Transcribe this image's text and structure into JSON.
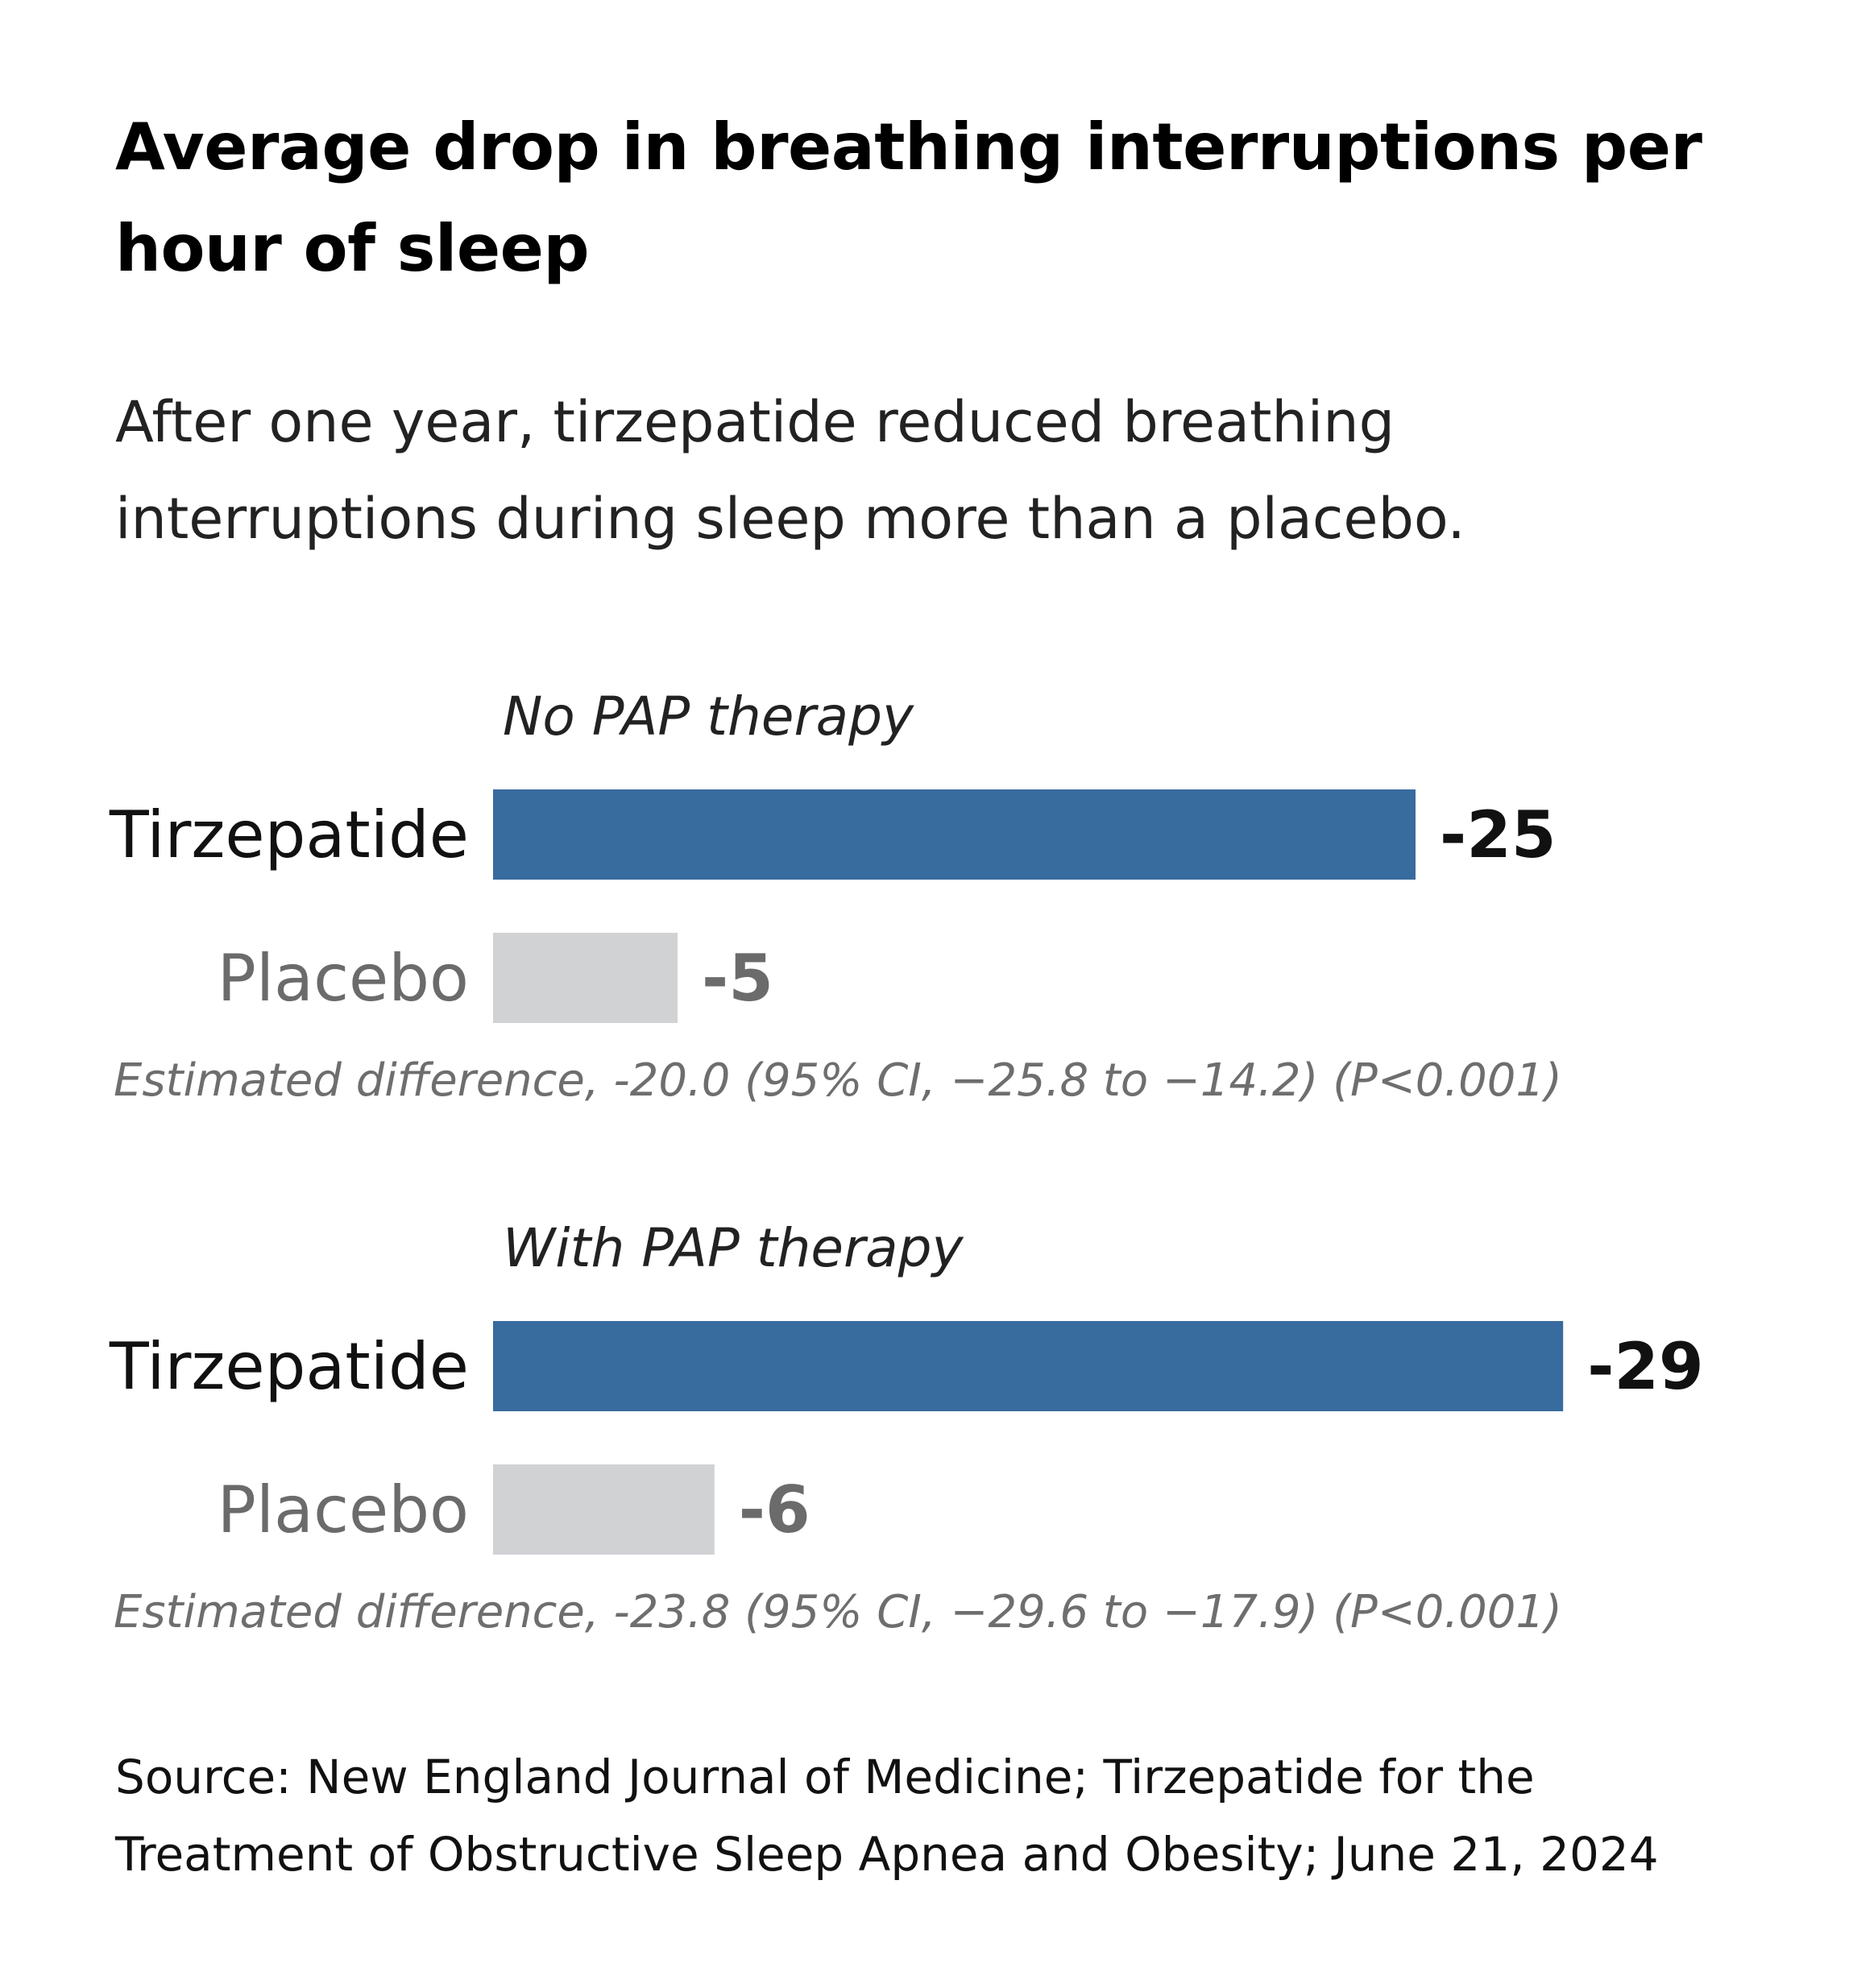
{
  "header": {
    "title": "Average drop in breathing interruptions per hour of sleep",
    "subtitle": "After one year, tirzepatide reduced breathing interruptions during sleep more than a placebo."
  },
  "chart_data": [
    {
      "type": "bar",
      "orientation": "horizontal",
      "title": "No PAP therapy",
      "categories": [
        "Tirzepatide",
        "Placebo"
      ],
      "values": [
        -25,
        -5
      ],
      "value_labels": [
        "-25",
        "-5"
      ],
      "colors": [
        "#386b9e",
        "#d1d2d4"
      ],
      "label_colors": [
        "#111111",
        "#6b6b6b"
      ],
      "note": "Estimated difference, -20.0 (95% CI, −25.8 to −14.2) (P<0.001)"
    },
    {
      "type": "bar",
      "orientation": "horizontal",
      "title": "With PAP therapy",
      "categories": [
        "Tirzepatide",
        "Placebo"
      ],
      "values": [
        -29,
        -6
      ],
      "value_labels": [
        "-29",
        "-6"
      ],
      "colors": [
        "#386b9e",
        "#d1d2d4"
      ],
      "label_colors": [
        "#111111",
        "#6b6b6b"
      ],
      "note": "Estimated difference, -23.8 (95% CI, −29.6 to −17.9) (P<0.001)"
    }
  ],
  "footer": {
    "source_line1": "Source: New England Journal of Medicine; Tirzepatide for the",
    "source_line2": "Treatment of Obstructive Sleep Apnea and Obesity; June 21, 2024"
  }
}
